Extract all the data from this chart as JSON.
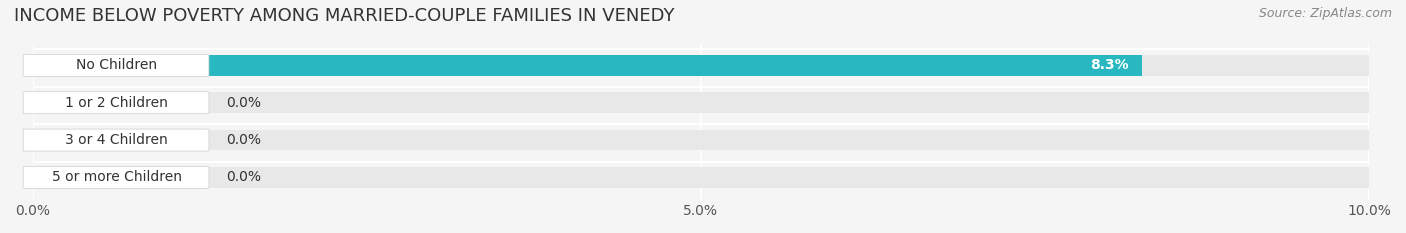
{
  "title": "INCOME BELOW POVERTY AMONG MARRIED-COUPLE FAMILIES IN VENEDY",
  "source": "Source: ZipAtlas.com",
  "categories": [
    "No Children",
    "1 or 2 Children",
    "3 or 4 Children",
    "5 or more Children"
  ],
  "values": [
    8.3,
    0.0,
    0.0,
    0.0
  ],
  "bar_colors": [
    "#29b8c2",
    "#a0a8d8",
    "#f08098",
    "#f8c888"
  ],
  "xlim": [
    0,
    10.0
  ],
  "xticks": [
    0.0,
    5.0,
    10.0
  ],
  "xtick_labels": [
    "0.0%",
    "5.0%",
    "10.0%"
  ],
  "background_color": "#f5f5f5",
  "bar_bg_color": "#e8e8e8",
  "title_fontsize": 13,
  "source_fontsize": 9,
  "label_fontsize": 10,
  "value_fontsize": 10
}
